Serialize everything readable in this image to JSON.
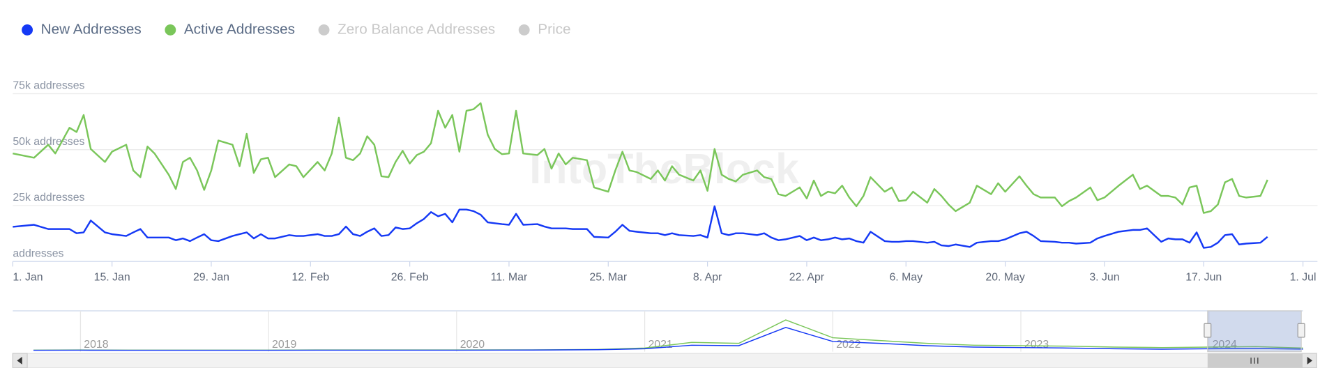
{
  "chart_data": {
    "type": "line",
    "watermark": "IntoTheBlock",
    "series": [
      {
        "name": "New Addresses",
        "color": "#1539f5",
        "values": [
          15500,
          16400,
          14500,
          14500,
          14500,
          12600,
          13000,
          18300,
          13000,
          12200,
          11400,
          13000,
          14500,
          10700,
          10700,
          10700,
          9500,
          10300,
          9100,
          10700,
          12200,
          9500,
          9100,
          11400,
          12200,
          13000,
          10300,
          12200,
          10300,
          10300,
          11800,
          11400,
          11400,
          12200,
          11400,
          11400,
          12200,
          15600,
          12200,
          11400,
          13300,
          14800,
          11400,
          11800,
          15200,
          14500,
          14800,
          17100,
          19000,
          22100,
          20200,
          21300,
          17500,
          23200,
          23200,
          22500,
          20900,
          17500,
          17100,
          16700,
          16400,
          21300,
          16400,
          16700,
          15600,
          14800,
          14800,
          14800,
          14500,
          14500,
          11000,
          10700,
          13300,
          16400,
          13700,
          13300,
          12600,
          12600,
          11800,
          12600,
          11800,
          11400,
          11800,
          10700,
          24700,
          12600,
          11800,
          12600,
          12600,
          11800,
          12600,
          10700,
          9500,
          9900,
          11400,
          9500,
          10700,
          9500,
          9900,
          10700,
          9900,
          10300,
          9100,
          8400,
          13300,
          9100,
          8800,
          8800,
          9100,
          9100,
          8400,
          8800,
          7200,
          6900,
          7600,
          6500,
          8400,
          9100,
          9100,
          9900,
          12600,
          13300,
          11400,
          9100,
          8800,
          8400,
          8400,
          8000,
          8400,
          10300,
          11400,
          13300,
          14100,
          14100,
          14800,
          8800,
          10300,
          9900,
          9900,
          8400,
          13000,
          6100,
          6500,
          8400,
          11800,
          12200,
          7600,
          8000,
          8400,
          11000
        ]
      },
      {
        "name": "Active Addresses",
        "color": "#7ac65a",
        "values": [
          48300,
          46400,
          52200,
          48300,
          59800,
          57900,
          65500,
          50300,
          44500,
          49100,
          52200,
          40700,
          37700,
          51400,
          48300,
          38800,
          32400,
          44500,
          46400,
          40700,
          32000,
          40700,
          54100,
          52200,
          42600,
          57100,
          39600,
          45700,
          46400,
          37700,
          43400,
          42600,
          37700,
          44500,
          40700,
          48300,
          64300,
          46400,
          45300,
          48300,
          56000,
          52200,
          38100,
          37700,
          44500,
          49500,
          43800,
          47600,
          49100,
          52900,
          67400,
          59800,
          65500,
          49100,
          67400,
          68100,
          70800,
          56700,
          50300,
          48000,
          48300,
          67400,
          48300,
          47600,
          50300,
          41500,
          48300,
          43400,
          46400,
          45300,
          33100,
          31200,
          40700,
          49100,
          40700,
          40000,
          36900,
          40700,
          36200,
          42600,
          38800,
          36200,
          40700,
          31600,
          50300,
          38800,
          36900,
          35800,
          38800,
          40700,
          37700,
          36900,
          30100,
          29300,
          33100,
          28200,
          36200,
          29300,
          31200,
          30500,
          33900,
          28600,
          24700,
          29300,
          37700,
          31200,
          33100,
          27000,
          27400,
          31200,
          26300,
          32400,
          29300,
          25500,
          22500,
          26300,
          33900,
          30100,
          35000,
          31200,
          38100,
          33900,
          30100,
          28600,
          28600,
          24700,
          27000,
          28600,
          33100,
          27400,
          28600,
          33900,
          38800,
          32400,
          33900,
          29300,
          29300,
          28600,
          25500,
          33100,
          33900,
          21700,
          22500,
          25500,
          35400,
          36900,
          29300,
          28600,
          29300,
          36500
        ]
      },
      {
        "name": "Zero Balance Addresses",
        "color": "#cccccc",
        "visible": false
      },
      {
        "name": "Price",
        "color": "#cccccc",
        "visible": false
      }
    ],
    "x": [
      0,
      3,
      5,
      6,
      8,
      9,
      10,
      11,
      13,
      14,
      16,
      17,
      18,
      19,
      20,
      22,
      23,
      24,
      25,
      26,
      27,
      28,
      29,
      31,
      32,
      33,
      34,
      35,
      36,
      37,
      39,
      40,
      41,
      43,
      44,
      45,
      46,
      47,
      48,
      49,
      50,
      51,
      52,
      53,
      54,
      55,
      56,
      57,
      58,
      59,
      60,
      61,
      62,
      63,
      64,
      65,
      66,
      67,
      68,
      69,
      70,
      71,
      72,
      74,
      75,
      76,
      77,
      78,
      79,
      81,
      82,
      84,
      85,
      86,
      87,
      88,
      90,
      91,
      92,
      93,
      94,
      96,
      97,
      98,
      99,
      100,
      101,
      102,
      103,
      105,
      106,
      107,
      108,
      109,
      111,
      112,
      113,
      114,
      115,
      116,
      117,
      118,
      119,
      120,
      121,
      123,
      124,
      125,
      126,
      127,
      129,
      130,
      131,
      132,
      133,
      135,
      136,
      138,
      139,
      140,
      142,
      143,
      144,
      145,
      147,
      148,
      149,
      150,
      152,
      153,
      154,
      156,
      158,
      159,
      160,
      162,
      163,
      164,
      165,
      166,
      167,
      168,
      169,
      170,
      171,
      172,
      173,
      174,
      176,
      177
    ],
    "xlim": [
      0,
      182
    ],
    "xticks": [
      {
        "value": 0,
        "label": "1. Jan"
      },
      {
        "value": 14,
        "label": "15. Jan"
      },
      {
        "value": 28,
        "label": "29. Jan"
      },
      {
        "value": 42,
        "label": "12. Feb"
      },
      {
        "value": 56,
        "label": "26. Feb"
      },
      {
        "value": 70,
        "label": "11. Mar"
      },
      {
        "value": 84,
        "label": "25. Mar"
      },
      {
        "value": 98,
        "label": "8. Apr"
      },
      {
        "value": 112,
        "label": "22. Apr"
      },
      {
        "value": 126,
        "label": "6. May"
      },
      {
        "value": 140,
        "label": "20. May"
      },
      {
        "value": 154,
        "label": "3. Jun"
      },
      {
        "value": 168,
        "label": "17. Jun"
      },
      {
        "value": 182,
        "label": "1. Jul"
      }
    ],
    "ylim": [
      0,
      75000
    ],
    "yticks": [
      {
        "value": 0,
        "label": "addresses"
      },
      {
        "value": 25000,
        "label": "25k addresses"
      },
      {
        "value": 50000,
        "label": "50k addresses"
      },
      {
        "value": 75000,
        "label": "75k addresses"
      }
    ],
    "grid": true,
    "legend": "top-left",
    "navigator": {
      "x": [
        2017.75,
        2018,
        2018.25,
        2018.5,
        2018.75,
        2019,
        2019.25,
        2019.5,
        2019.75,
        2020,
        2020.25,
        2020.5,
        2020.75,
        2021,
        2021.25,
        2021.5,
        2021.75,
        2022,
        2022.25,
        2022.5,
        2022.75,
        2023,
        2023.25,
        2023.5,
        2023.75,
        2024,
        2024.25,
        2024.5
      ],
      "xlim": [
        2017.64,
        2024.5
      ],
      "xticks": [
        2018,
        2019,
        2020,
        2021,
        2022,
        2023,
        2024
      ],
      "ylim": [
        0,
        400000
      ],
      "series": [
        {
          "color": "#7ac65a",
          "values": [
            8000,
            9000,
            8000,
            8000,
            8000,
            8000,
            9000,
            9000,
            9000,
            9000,
            10000,
            11000,
            15000,
            30000,
            90000,
            80000,
            330000,
            140000,
            110000,
            80000,
            60000,
            55000,
            50000,
            40000,
            35000,
            40000,
            45000,
            30000
          ]
        },
        {
          "color": "#1539f5",
          "values": [
            6000,
            7000,
            6000,
            6000,
            6000,
            6000,
            7000,
            7000,
            7000,
            7000,
            8000,
            9000,
            12000,
            22000,
            60000,
            55000,
            250000,
            100000,
            80000,
            55000,
            40000,
            35000,
            30000,
            22000,
            18000,
            22000,
            25000,
            18000
          ]
        }
      ]
    }
  }
}
